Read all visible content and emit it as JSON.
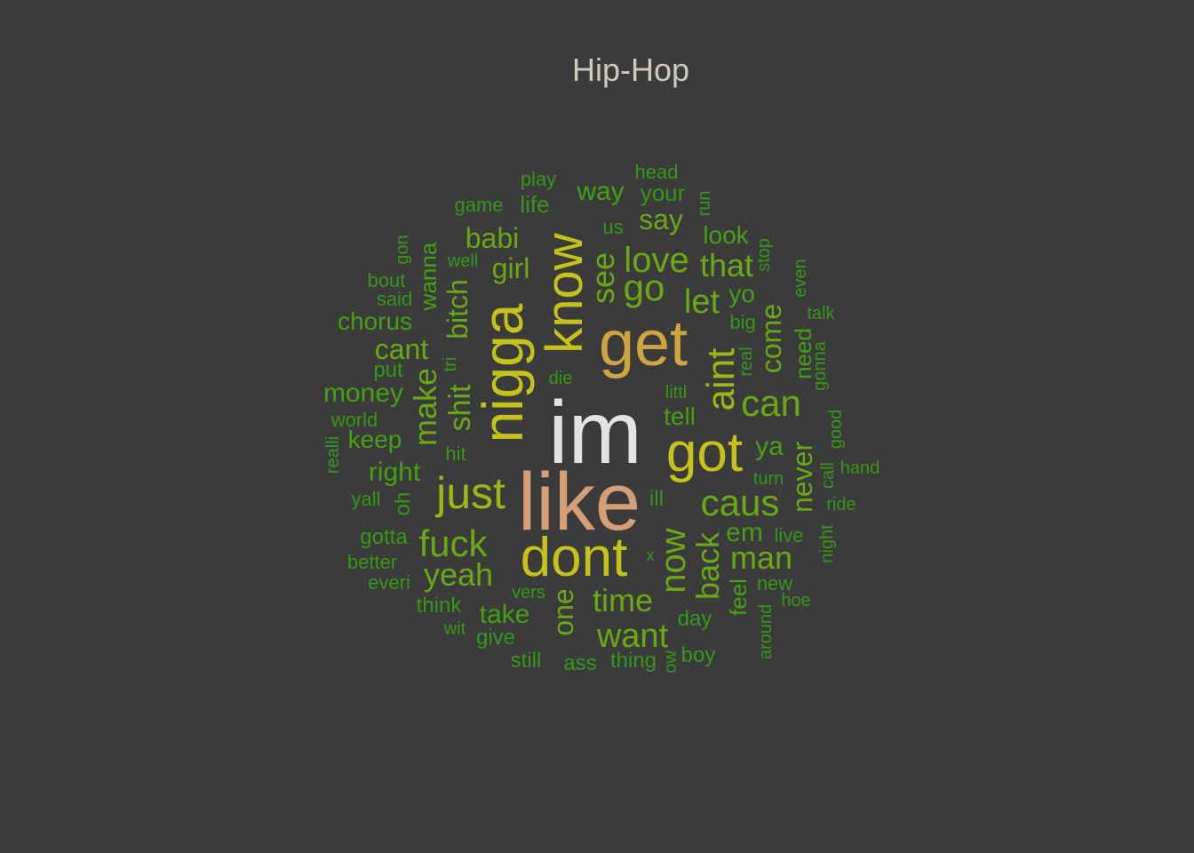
{
  "title": "Hip-Hop",
  "colors": {
    "background": "#3b3b3b",
    "title": "#cfcab8",
    "light": "#e2e2e2",
    "salmon": "#d49f76",
    "gold": "#d0a540",
    "yellow": "#c4c21b",
    "lime": "#9bb914",
    "green": "#6aa815",
    "dark": "#45a013",
    "darkest": "#36971a"
  },
  "words": [
    {
      "text": "im",
      "color": "light"
    },
    {
      "text": "like",
      "color": "salmon"
    },
    {
      "text": "get",
      "color": "gold"
    },
    {
      "text": "nigga",
      "color": "yellow"
    },
    {
      "text": "know",
      "color": "yellow"
    },
    {
      "text": "got",
      "color": "yellow"
    },
    {
      "text": "dont",
      "color": "yellow"
    },
    {
      "text": "just",
      "color": "lime"
    },
    {
      "text": "aint",
      "color": "lime"
    },
    {
      "text": "caus",
      "color": "green"
    },
    {
      "text": "can",
      "color": "green"
    },
    {
      "text": "fuck",
      "color": "green"
    },
    {
      "text": "love",
      "color": "green"
    },
    {
      "text": "go",
      "color": "green"
    },
    {
      "text": "now",
      "color": "green"
    },
    {
      "text": "back",
      "color": "green"
    },
    {
      "text": "make",
      "color": "green"
    },
    {
      "text": "yeah",
      "color": "green"
    },
    {
      "text": "man",
      "color": "green"
    },
    {
      "text": "time",
      "color": "green"
    },
    {
      "text": "want",
      "color": "green"
    },
    {
      "text": "let",
      "color": "green"
    },
    {
      "text": "see",
      "color": "green"
    },
    {
      "text": "that",
      "color": "green"
    },
    {
      "text": "shit",
      "color": "green"
    },
    {
      "text": "bitch",
      "color": "green"
    },
    {
      "text": "one",
      "color": "green"
    },
    {
      "text": "babi",
      "color": "green"
    },
    {
      "text": "come",
      "color": "green"
    },
    {
      "text": "say",
      "color": "green"
    },
    {
      "text": "girl",
      "color": "green"
    },
    {
      "text": "cant",
      "color": "green"
    },
    {
      "text": "never",
      "color": "green"
    },
    {
      "text": "take",
      "color": "dark"
    },
    {
      "text": "way",
      "color": "dark"
    },
    {
      "text": "ya",
      "color": "dark"
    },
    {
      "text": "money",
      "color": "dark"
    },
    {
      "text": "em",
      "color": "dark"
    },
    {
      "text": "right",
      "color": "dark"
    },
    {
      "text": "tell",
      "color": "dark"
    },
    {
      "text": "keep",
      "color": "dark"
    },
    {
      "text": "look",
      "color": "dark"
    },
    {
      "text": "wanna",
      "color": "dark"
    },
    {
      "text": "yo",
      "color": "dark"
    },
    {
      "text": "need",
      "color": "dark"
    },
    {
      "text": "feel",
      "color": "dark"
    },
    {
      "text": "chorus",
      "color": "dark"
    },
    {
      "text": "your",
      "color": "darkest"
    },
    {
      "text": "life",
      "color": "darkest"
    },
    {
      "text": "play",
      "color": "darkest"
    },
    {
      "text": "head",
      "color": "darkest"
    },
    {
      "text": "run",
      "color": "darkest"
    },
    {
      "text": "game",
      "color": "darkest"
    },
    {
      "text": "us",
      "color": "darkest"
    },
    {
      "text": "gon",
      "color": "darkest"
    },
    {
      "text": "well",
      "color": "darkest"
    },
    {
      "text": "bout",
      "color": "darkest"
    },
    {
      "text": "said",
      "color": "darkest"
    },
    {
      "text": "stop",
      "color": "darkest"
    },
    {
      "text": "even",
      "color": "darkest"
    },
    {
      "text": "talk",
      "color": "darkest"
    },
    {
      "text": "big",
      "color": "darkest"
    },
    {
      "text": "real",
      "color": "darkest"
    },
    {
      "text": "gonna",
      "color": "darkest"
    },
    {
      "text": "put",
      "color": "darkest"
    },
    {
      "text": "tri",
      "color": "darkest"
    },
    {
      "text": "die",
      "color": "darkest"
    },
    {
      "text": "littl",
      "color": "darkest"
    },
    {
      "text": "world",
      "color": "darkest"
    },
    {
      "text": "realli",
      "color": "darkest"
    },
    {
      "text": "hit",
      "color": "darkest"
    },
    {
      "text": "good",
      "color": "darkest"
    },
    {
      "text": "call",
      "color": "darkest"
    },
    {
      "text": "hand",
      "color": "darkest"
    },
    {
      "text": "turn",
      "color": "darkest"
    },
    {
      "text": "ride",
      "color": "darkest"
    },
    {
      "text": "yall",
      "color": "darkest"
    },
    {
      "text": "oh",
      "color": "darkest"
    },
    {
      "text": "ill",
      "color": "darkest"
    },
    {
      "text": "gotta",
      "color": "darkest"
    },
    {
      "text": "live",
      "color": "darkest"
    },
    {
      "text": "night",
      "color": "darkest"
    },
    {
      "text": "better",
      "color": "darkest"
    },
    {
      "text": "x",
      "color": "darkest"
    },
    {
      "text": "everi",
      "color": "darkest"
    },
    {
      "text": "new",
      "color": "darkest"
    },
    {
      "text": "hoe",
      "color": "darkest"
    },
    {
      "text": "think",
      "color": "darkest"
    },
    {
      "text": "vers",
      "color": "darkest"
    },
    {
      "text": "day",
      "color": "darkest"
    },
    {
      "text": "around",
      "color": "darkest"
    },
    {
      "text": "wit",
      "color": "darkest"
    },
    {
      "text": "give",
      "color": "darkest"
    },
    {
      "text": "still",
      "color": "darkest"
    },
    {
      "text": "ass",
      "color": "darkest"
    },
    {
      "text": "thing",
      "color": "darkest"
    },
    {
      "text": "ow",
      "color": "darkest"
    },
    {
      "text": "boy",
      "color": "darkest"
    }
  ]
}
